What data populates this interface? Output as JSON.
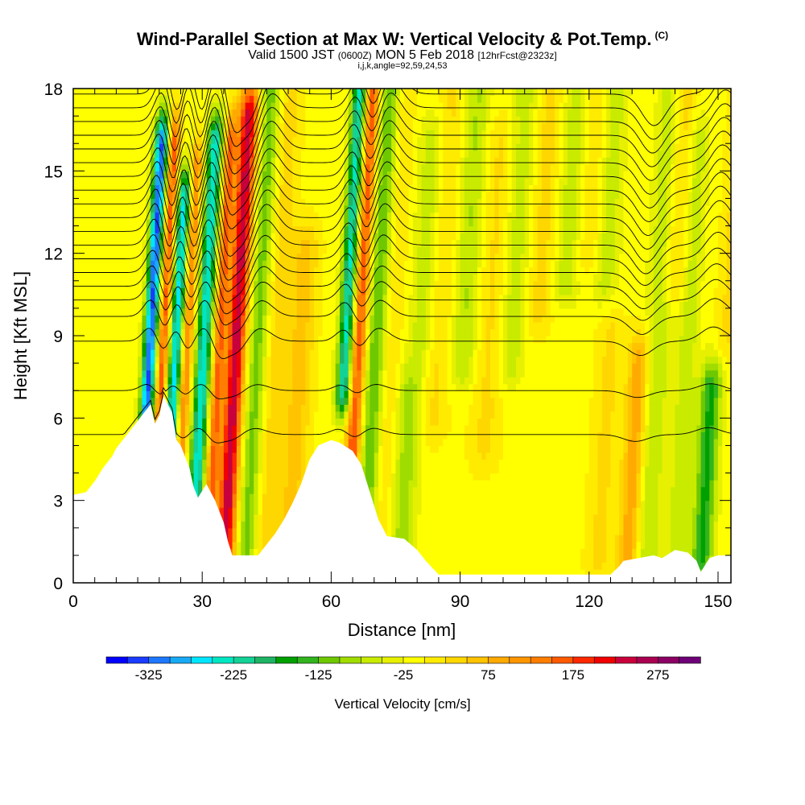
{
  "chart_data": {
    "type": "heatmap",
    "title": "Wind-Parallel Section at Max W: Vertical Velocity & Pot.Temp.",
    "title_mark": "(C)",
    "subtitle_parts": [
      "Valid 1500 JST",
      "(0600Z)",
      "MON 5 Feb 2018",
      "[12hrFcst@2323z]"
    ],
    "subtitle2": "i,j,k,angle=92,59,24,53",
    "xlabel": "Distance [nm]",
    "ylabel": "Height [Kft MSL]",
    "xlim": [
      0,
      153
    ],
    "ylim": [
      0,
      18
    ],
    "xticks": [
      0,
      30,
      60,
      90,
      120,
      150
    ],
    "yticks": [
      0,
      3,
      6,
      9,
      12,
      15,
      18
    ],
    "colorbar": {
      "label": "Vertical Velocity [cm/s]",
      "tick_labels": [
        "-325",
        "-225",
        "-125",
        "-25",
        "75",
        "175",
        "275"
      ],
      "min": -375,
      "max": 325,
      "step": 25,
      "colors": [
        "#0000ff",
        "#1a3cff",
        "#1e78ff",
        "#19aaf5",
        "#00e6ff",
        "#00e6c3",
        "#14d296",
        "#1eb464",
        "#00a000",
        "#32b41e",
        "#6ec800",
        "#a0dc00",
        "#c8eb00",
        "#e6f000",
        "#ffff00",
        "#ffeb00",
        "#ffd700",
        "#ffc300",
        "#ffaa00",
        "#ff9600",
        "#ff7d00",
        "#ff5a00",
        "#ff2800",
        "#f00000",
        "#c8003c",
        "#aa0050",
        "#8c0064",
        "#6e0078"
      ]
    },
    "terrain_kft": [
      [
        0,
        3.2
      ],
      [
        3,
        3.3
      ],
      [
        5,
        3.7
      ],
      [
        7,
        4.2
      ],
      [
        9,
        4.6
      ],
      [
        10,
        4.9
      ],
      [
        12,
        5.3
      ],
      [
        14,
        5.7
      ],
      [
        16,
        6.1
      ],
      [
        18,
        6.5
      ],
      [
        19,
        5.8
      ],
      [
        20,
        6.1
      ],
      [
        21,
        6.8
      ],
      [
        23,
        6.2
      ],
      [
        24,
        5.2
      ],
      [
        25,
        5.0
      ],
      [
        27,
        4.2
      ],
      [
        28,
        3.5
      ],
      [
        29,
        3.1
      ],
      [
        31,
        3.6
      ],
      [
        33,
        3.0
      ],
      [
        35,
        2.2
      ],
      [
        36,
        1.5
      ],
      [
        37,
        1.0
      ],
      [
        43,
        1.0
      ],
      [
        45,
        1.4
      ],
      [
        47,
        1.8
      ],
      [
        49,
        2.3
      ],
      [
        51,
        2.9
      ],
      [
        53,
        3.6
      ],
      [
        55,
        4.5
      ],
      [
        57,
        5.0
      ],
      [
        60,
        5.2
      ],
      [
        62,
        5.1
      ],
      [
        65,
        4.8
      ],
      [
        67,
        4.3
      ],
      [
        69,
        3.3
      ],
      [
        71,
        2.3
      ],
      [
        73,
        1.7
      ],
      [
        77,
        1.6
      ],
      [
        80,
        1.2
      ],
      [
        82,
        0.8
      ],
      [
        85,
        0.3
      ],
      [
        125,
        0.3
      ],
      [
        127,
        0.6
      ],
      [
        128,
        0.8
      ],
      [
        135,
        1.0
      ],
      [
        137,
        0.9
      ],
      [
        140,
        1.2
      ],
      [
        143,
        1.1
      ],
      [
        145,
        0.8
      ],
      [
        146,
        0.4
      ],
      [
        148,
        0.9
      ],
      [
        150,
        1.0
      ],
      [
        153,
        1.0
      ]
    ],
    "velocity_features": [
      {
        "x": 17,
        "w": 1.6,
        "v": -320,
        "yb": 3,
        "yt": 16
      },
      {
        "x": 20,
        "w": 1.3,
        "v": 180,
        "yb": 3,
        "yt": 16
      },
      {
        "x": 23,
        "w": 1.6,
        "v": -250,
        "yb": 3,
        "yt": 14
      },
      {
        "x": 25.5,
        "w": 1.3,
        "v": 150,
        "yb": 3,
        "yt": 15
      },
      {
        "x": 29.5,
        "w": 1.8,
        "v": -240,
        "yb": 3,
        "yt": 16
      },
      {
        "x": 33,
        "w": 1.4,
        "v": 160,
        "yb": 2,
        "yt": 16
      },
      {
        "x": 37,
        "w": 2.3,
        "v": 255,
        "yb": 1,
        "yt": 17
      },
      {
        "x": 42,
        "w": 2.5,
        "v": -110,
        "yb": 1,
        "yt": 18
      },
      {
        "x": 46,
        "w": 3.0,
        "v": 50,
        "yb": 1,
        "yt": 18
      },
      {
        "x": 52,
        "w": 3.0,
        "v": 70,
        "yb": 2,
        "yt": 12
      },
      {
        "x": 62.5,
        "w": 1.8,
        "v": -230,
        "yb": 7,
        "yt": 18
      },
      {
        "x": 65.5,
        "w": 1.8,
        "v": 190,
        "yb": 4,
        "yt": 18
      },
      {
        "x": 69.5,
        "w": 2.5,
        "v": -120,
        "yb": 2,
        "yt": 18
      },
      {
        "x": 73,
        "w": 2.5,
        "v": 40,
        "yb": 2,
        "yt": 18
      },
      {
        "x": 78,
        "w": 3.0,
        "v": -80,
        "yb": 1,
        "yt": 7
      },
      {
        "x": 80,
        "w": 3.0,
        "v": -60,
        "yb": 9,
        "yt": 16
      },
      {
        "x": 84,
        "w": 3.0,
        "v": 40,
        "yb": 6,
        "yt": 18
      },
      {
        "x": 90,
        "w": 3.0,
        "v": -70,
        "yb": 8,
        "yt": 18
      },
      {
        "x": 96,
        "w": 3.5,
        "v": 40,
        "yb": 5,
        "yt": 16
      },
      {
        "x": 101,
        "w": 3.0,
        "v": -60,
        "yb": 8,
        "yt": 18
      },
      {
        "x": 107,
        "w": 3.0,
        "v": 45,
        "yb": 10,
        "yt": 18
      },
      {
        "x": 113,
        "w": 3.0,
        "v": -60,
        "yb": 11,
        "yt": 18
      },
      {
        "x": 118,
        "w": 3.0,
        "v": 40,
        "yb": 12,
        "yt": 18
      },
      {
        "x": 122,
        "w": 3.0,
        "v": -60,
        "yb": 11,
        "yt": 18
      },
      {
        "x": 124,
        "w": 3.0,
        "v": 40,
        "yb": 1,
        "yt": 9
      },
      {
        "x": 131,
        "w": 2.5,
        "v": 110,
        "yb": 1,
        "yt": 8
      },
      {
        "x": 135,
        "w": 3.0,
        "v": -70,
        "yb": 1,
        "yt": 18
      },
      {
        "x": 138,
        "w": 3.0,
        "v": 60,
        "yb": 11,
        "yt": 18
      },
      {
        "x": 142,
        "w": 2.5,
        "v": -60,
        "yb": 1,
        "yt": 16
      },
      {
        "x": 148,
        "w": 2.5,
        "v": -150,
        "yb": 1,
        "yt": 7
      },
      {
        "x": 151,
        "w": 2.5,
        "v": 40,
        "yb": 9,
        "yt": 18
      }
    ],
    "isentrope_heights_kft": [
      5.4,
      7.0,
      8.8,
      9.7,
      10.3,
      10.8,
      11.3,
      11.8,
      12.3,
      12.8,
      13.3,
      13.8,
      14.3,
      14.8,
      15.3,
      15.8,
      16.3,
      16.8,
      17.3,
      17.8
    ]
  }
}
